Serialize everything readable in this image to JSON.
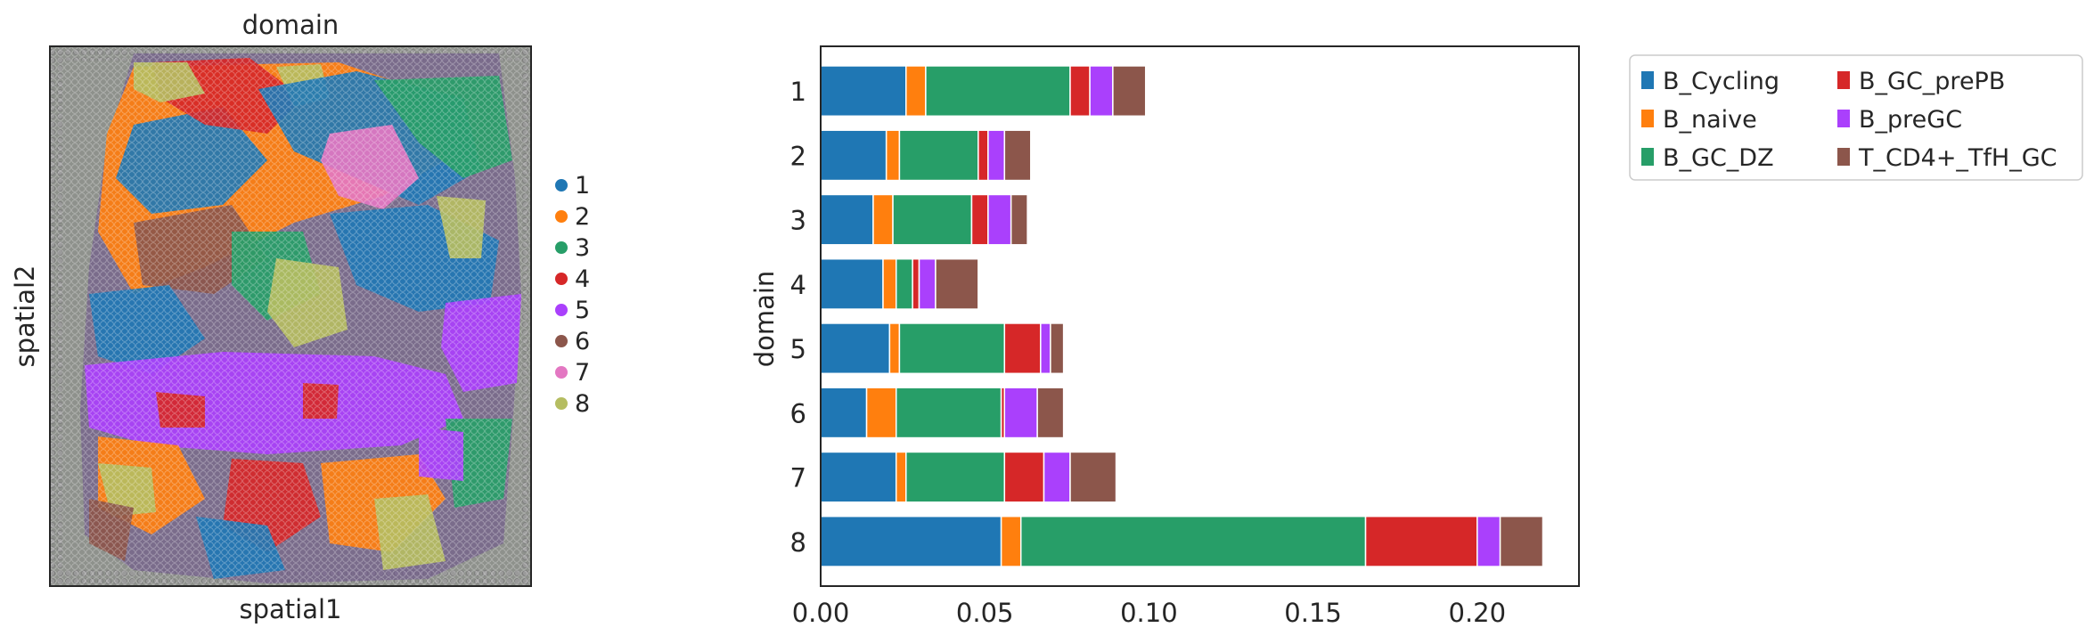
{
  "spatial_panel": {
    "title": "domain",
    "xlabel": "spatial1",
    "ylabel": "spatial2",
    "legend": [
      {
        "label": "1",
        "color": "#1f77b4"
      },
      {
        "label": "2",
        "color": "#ff7f0e"
      },
      {
        "label": "3",
        "color": "#279e68"
      },
      {
        "label": "4",
        "color": "#d62728"
      },
      {
        "label": "5",
        "color": "#aa40fc"
      },
      {
        "label": "6",
        "color": "#8c564b"
      },
      {
        "label": "7",
        "color": "#e377c2"
      },
      {
        "label": "8",
        "color": "#b5bd61"
      }
    ]
  },
  "chart_data": {
    "type": "bar",
    "orientation": "horizontal",
    "stacked": true,
    "categories": [
      "1",
      "2",
      "3",
      "4",
      "5",
      "6",
      "7",
      "8"
    ],
    "ylabel": "domain",
    "xlabel": "",
    "xlim": [
      0,
      0.231
    ],
    "xticks": [
      "0.00",
      "0.05",
      "0.10",
      "0.15",
      "0.20"
    ],
    "xtick_values": [
      0,
      0.05,
      0.1,
      0.15,
      0.2
    ],
    "grid": false,
    "legend_placement": "outside top-right, 2 columns",
    "series": [
      {
        "name": "B_Cycling",
        "color": "#1f77b4",
        "values": [
          0.026,
          0.02,
          0.016,
          0.019,
          0.021,
          0.014,
          0.023,
          0.055
        ]
      },
      {
        "name": "B_naive",
        "color": "#ff7f0e",
        "values": [
          0.006,
          0.004,
          0.006,
          0.004,
          0.003,
          0.009,
          0.003,
          0.006
        ]
      },
      {
        "name": "B_GC_DZ",
        "color": "#279e68",
        "values": [
          0.044,
          0.024,
          0.024,
          0.005,
          0.032,
          0.032,
          0.03,
          0.105
        ]
      },
      {
        "name": "B_GC_prePB",
        "color": "#d62728",
        "values": [
          0.006,
          0.003,
          0.005,
          0.002,
          0.011,
          0.001,
          0.012,
          0.034
        ]
      },
      {
        "name": "B_preGC",
        "color": "#aa40fc",
        "values": [
          0.007,
          0.005,
          0.007,
          0.005,
          0.003,
          0.01,
          0.008,
          0.007
        ]
      },
      {
        "name": "T_CD4+_TfH_GC",
        "color": "#8c564b",
        "values": [
          0.01,
          0.008,
          0.005,
          0.013,
          0.004,
          0.008,
          0.014,
          0.013
        ]
      }
    ]
  }
}
